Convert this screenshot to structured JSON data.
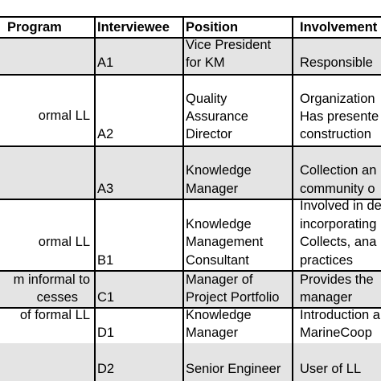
{
  "table": {
    "headers": {
      "program": "Program",
      "interviewee": "Interviewee",
      "position": "Position",
      "involvement": "Involvement"
    },
    "rows": [
      {
        "program": [],
        "interviewee": "A1",
        "position": [
          "Vice President",
          "for KM"
        ],
        "involvement": [
          "Responsible"
        ]
      },
      {
        "program": [
          "ormal LL"
        ],
        "interviewee": "A2",
        "position": [
          "Quality",
          "Assurance",
          "Director"
        ],
        "involvement": [
          "Organization",
          "Has presente",
          "construction"
        ]
      },
      {
        "program": [],
        "interviewee": "A3",
        "position": [
          "Knowledge",
          "Manager"
        ],
        "involvement": [
          "Collection an",
          "community o"
        ]
      },
      {
        "program": [
          "ormal LL"
        ],
        "interviewee": "B1",
        "position": [
          "Knowledge",
          "Management",
          "Consultant"
        ],
        "involvement": [
          "Involved in de",
          "incorporating",
          "Collects, ana",
          "practices"
        ]
      },
      {
        "program": [
          "m informal to",
          "cesses"
        ],
        "interviewee": "C1",
        "position": [
          "Manager of",
          "Project Portfolio"
        ],
        "involvement": [
          "Provides the",
          "manager"
        ]
      },
      {
        "program": [
          "of formal LL"
        ],
        "interviewee": "D1",
        "position": [
          "Knowledge",
          "Manager"
        ],
        "involvement": [
          "Introduction a",
          "MarineCoop"
        ]
      },
      {
        "program": [],
        "interviewee": "D2",
        "position": [
          "Senior Engineer"
        ],
        "involvement": [
          "User of LL"
        ]
      }
    ]
  }
}
